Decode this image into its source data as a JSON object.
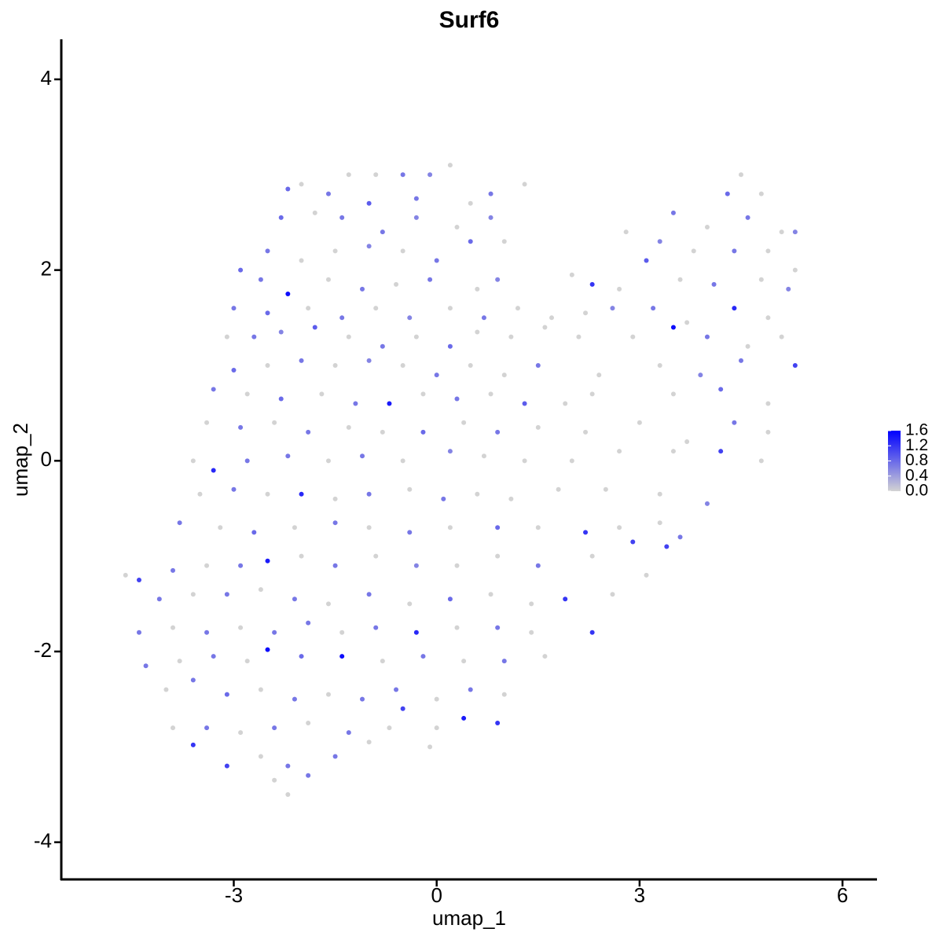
{
  "chart_data": {
    "type": "scatter",
    "title": "Surf6",
    "x_label": "umap_1",
    "y_label": "umap_2",
    "xlim": [
      -5.55,
      6.51
    ],
    "ylim": [
      -4.39,
      4.42
    ],
    "xticks": [
      -3,
      0,
      3,
      6
    ],
    "yticks": [
      -4,
      -2,
      0,
      2,
      4
    ],
    "low_color": "#d3d3d3",
    "high_color": "#0000ff",
    "color_lim": [
      0,
      1.6
    ],
    "color_ticks": [
      {
        "value": 0,
        "label": "0.0"
      },
      0.4,
      0.8,
      1.2,
      1.6
    ],
    "x": [
      -0.9,
      -0.5,
      -0.1,
      0.2,
      -1.3,
      -2.0,
      -2.2,
      -1.6,
      -1.0,
      -0.3,
      0.5,
      0.8,
      1.3,
      4.5,
      4.3,
      4.8,
      -2.3,
      -1.8,
      -1.4,
      -0.8,
      -0.3,
      0.3,
      0.8,
      3.5,
      4.0,
      4.6,
      5.1,
      5.3,
      -2.5,
      -2.0,
      -1.5,
      -1.0,
      -0.5,
      0.0,
      0.5,
      1.0,
      2.8,
      3.3,
      3.8,
      4.4,
      4.9,
      5.3,
      -2.9,
      -2.6,
      -2.2,
      -1.6,
      -1.1,
      -0.6,
      -0.1,
      0.6,
      0.9,
      2.0,
      2.3,
      2.7,
      3.1,
      3.6,
      4.1,
      4.8,
      5.2,
      -3.0,
      -2.5,
      -1.9,
      -1.4,
      -0.9,
      -0.4,
      0.2,
      0.7,
      1.2,
      1.7,
      2.2,
      2.6,
      3.2,
      3.7,
      4.4,
      4.9,
      -3.1,
      -2.7,
      -2.3,
      -1.8,
      -1.3,
      -0.8,
      -0.3,
      0.2,
      0.6,
      1.1,
      1.6,
      2.1,
      2.9,
      3.5,
      4.0,
      4.6,
      5.1,
      -3.0,
      -2.5,
      -2.0,
      -1.5,
      -1.0,
      -0.5,
      0.0,
      0.5,
      1.0,
      1.5,
      2.4,
      3.3,
      3.9,
      4.5,
      5.3,
      -3.3,
      -2.8,
      -2.3,
      -1.7,
      -1.2,
      -0.7,
      -0.2,
      0.3,
      0.8,
      1.3,
      1.9,
      2.3,
      3.5,
      4.2,
      4.9,
      -3.4,
      -2.9,
      -2.4,
      -1.9,
      -1.3,
      -0.8,
      -0.2,
      0.4,
      0.9,
      1.5,
      2.2,
      3.0,
      3.7,
      4.4,
      4.9,
      -3.6,
      -3.3,
      -2.8,
      -2.2,
      -1.6,
      -1.1,
      -0.5,
      0.2,
      0.7,
      1.3,
      2.0,
      2.7,
      3.5,
      4.2,
      4.8,
      -3.5,
      -3.0,
      -2.5,
      -2.0,
      -1.5,
      -1.0,
      -0.4,
      0.1,
      0.6,
      1.1,
      1.8,
      2.5,
      3.3,
      4.0,
      -3.8,
      -3.2,
      -2.7,
      -2.1,
      -1.5,
      -1.0,
      -0.4,
      0.2,
      0.9,
      1.5,
      2.2,
      2.7,
      3.3,
      3.6,
      -4.6,
      -4.4,
      -3.9,
      -3.4,
      -2.9,
      -2.5,
      -2.0,
      -1.5,
      -0.9,
      -0.3,
      0.3,
      0.9,
      1.5,
      2.3,
      2.9,
      3.4,
      3.1,
      -4.1,
      -3.6,
      -3.1,
      -2.6,
      -2.1,
      -1.6,
      -1.0,
      -0.4,
      0.2,
      0.8,
      1.4,
      1.9,
      2.6,
      -4.4,
      -3.9,
      -3.4,
      -2.9,
      -2.4,
      -1.9,
      -1.4,
      -0.9,
      -0.3,
      0.3,
      0.9,
      1.4,
      2.3,
      -4.3,
      -3.8,
      -3.3,
      -2.8,
      -2.5,
      -2.0,
      -1.4,
      -0.8,
      -0.2,
      0.4,
      1.0,
      1.6,
      -4.0,
      -3.6,
      -3.1,
      -2.6,
      -2.1,
      -1.6,
      -1.1,
      -0.6,
      0.0,
      0.5,
      1.0,
      -3.9,
      -3.4,
      -2.9,
      -2.4,
      -1.9,
      -1.3,
      -0.7,
      0.0,
      0.4,
      0.9,
      -0.5,
      -3.6,
      -3.1,
      -2.6,
      -2.2,
      -1.5,
      -1.0,
      -0.1,
      -2.4,
      -2.2,
      -1.9
    ],
    "y": [
      3.0,
      3.0,
      3.0,
      3.1,
      3.0,
      2.9,
      2.85,
      2.8,
      2.7,
      2.75,
      2.7,
      2.8,
      2.9,
      3.0,
      2.8,
      2.8,
      2.55,
      2.6,
      2.55,
      2.4,
      2.55,
      2.45,
      2.55,
      2.6,
      2.45,
      2.55,
      2.4,
      2.4,
      2.2,
      2.1,
      2.2,
      2.25,
      2.2,
      2.1,
      2.3,
      2.3,
      2.4,
      2.3,
      2.2,
      2.2,
      2.2,
      2.0,
      2.0,
      1.9,
      1.75,
      1.9,
      1.8,
      1.85,
      1.9,
      1.8,
      1.9,
      1.95,
      1.85,
      1.8,
      2.1,
      1.9,
      1.85,
      1.9,
      1.8,
      1.6,
      1.55,
      1.6,
      1.5,
      1.6,
      1.5,
      1.6,
      1.5,
      1.6,
      1.5,
      1.55,
      1.6,
      1.6,
      1.45,
      1.6,
      1.5,
      1.3,
      1.3,
      1.35,
      1.4,
      1.3,
      1.2,
      1.3,
      1.2,
      1.35,
      1.3,
      1.4,
      1.3,
      1.3,
      1.4,
      1.3,
      1.2,
      1.3,
      0.95,
      1.0,
      1.05,
      1.0,
      1.05,
      1.0,
      0.9,
      1.0,
      0.9,
      1.0,
      0.9,
      1.0,
      0.9,
      1.05,
      1.0,
      0.75,
      0.7,
      0.65,
      0.7,
      0.6,
      0.6,
      0.7,
      0.65,
      0.7,
      0.6,
      0.6,
      0.7,
      0.7,
      0.75,
      0.6,
      0.4,
      0.35,
      0.4,
      0.3,
      0.35,
      0.3,
      0.3,
      0.4,
      0.3,
      0.35,
      0.3,
      0.4,
      0.2,
      0.4,
      0.3,
      0.0,
      -0.1,
      0.0,
      0.05,
      0.0,
      0.05,
      0.0,
      0.1,
      0.05,
      0.0,
      0.0,
      0.1,
      0.1,
      0.1,
      0.0,
      -0.35,
      -0.3,
      -0.35,
      -0.35,
      -0.4,
      -0.35,
      -0.3,
      -0.4,
      -0.35,
      -0.4,
      -0.3,
      -0.3,
      -0.35,
      -0.45,
      -0.65,
      -0.7,
      -0.75,
      -0.7,
      -0.65,
      -0.7,
      -0.75,
      -0.7,
      -0.7,
      -0.7,
      -0.75,
      -0.7,
      -0.65,
      -0.8,
      -1.2,
      -1.25,
      -1.15,
      -1.1,
      -1.1,
      -1.05,
      -1.0,
      -1.1,
      -1.0,
      -1.1,
      -1.1,
      -1.0,
      -1.1,
      -1.0,
      -0.85,
      -0.9,
      -1.2,
      -1.45,
      -1.4,
      -1.4,
      -1.35,
      -1.45,
      -1.5,
      -1.4,
      -1.5,
      -1.45,
      -1.4,
      -1.5,
      -1.45,
      -1.4,
      -1.8,
      -1.75,
      -1.8,
      -1.75,
      -1.8,
      -1.7,
      -1.8,
      -1.75,
      -1.8,
      -1.75,
      -1.75,
      -1.8,
      -1.8,
      -2.15,
      -2.1,
      -2.05,
      -2.1,
      -1.98,
      -2.05,
      -2.05,
      -2.1,
      -2.05,
      -2.1,
      -2.1,
      -2.05,
      -2.4,
      -2.3,
      -2.45,
      -2.4,
      -2.5,
      -2.45,
      -2.5,
      -2.4,
      -2.5,
      -2.4,
      -2.45,
      -2.8,
      -2.8,
      -2.85,
      -2.8,
      -2.75,
      -2.85,
      -2.8,
      -2.8,
      -2.7,
      -2.75,
      -2.6,
      -2.98,
      -3.2,
      -3.1,
      -3.2,
      -3.1,
      -2.95,
      -3.0,
      -3.35,
      -3.5,
      -3.3
    ],
    "values": [
      0,
      0.7,
      0.6,
      0,
      0,
      0,
      0.8,
      0.7,
      0.9,
      0.7,
      0,
      0.7,
      0,
      0,
      0.8,
      0,
      0.8,
      0,
      0.7,
      0.7,
      0.6,
      0,
      0.6,
      0.7,
      0,
      0.7,
      0,
      0.6,
      0.7,
      0,
      0,
      0.6,
      0,
      0.7,
      0.8,
      0,
      0,
      0.6,
      0,
      0.7,
      0,
      0,
      0.8,
      0.7,
      1.5,
      0,
      0.7,
      0,
      0.7,
      0,
      0.6,
      0,
      1.2,
      0,
      0.9,
      0,
      0.7,
      0,
      0.6,
      0.7,
      0.8,
      0,
      0.7,
      0,
      0.6,
      0,
      0.7,
      0,
      0,
      0,
      0.6,
      0.7,
      0,
      1.3,
      0,
      0,
      0.7,
      0.6,
      0.9,
      0,
      0.7,
      0,
      0.8,
      0,
      0,
      0,
      0,
      0,
      1.5,
      0.7,
      0,
      0,
      0.8,
      0,
      0.7,
      0,
      0.6,
      0,
      0.7,
      0,
      0,
      0.7,
      0,
      0,
      0.6,
      0.7,
      1.1,
      0.7,
      0,
      0.8,
      0,
      0.7,
      1.4,
      0,
      0.7,
      0,
      0.9,
      0,
      0,
      0,
      0.8,
      0,
      0,
      0.7,
      0,
      0.7,
      0,
      0,
      0.8,
      0,
      0.7,
      0,
      0,
      0,
      0,
      0.7,
      0,
      0,
      1.3,
      0.7,
      0.7,
      0,
      0.7,
      0,
      0.6,
      0,
      0,
      0,
      0,
      0,
      1.1,
      0,
      0,
      0.7,
      0,
      1.3,
      0,
      0.7,
      0,
      0.7,
      0,
      0,
      0,
      0,
      0,
      0.6,
      0.7,
      0,
      0.8,
      0,
      0.7,
      0,
      0.7,
      0,
      0.8,
      0,
      1.2,
      0,
      0,
      0.7,
      0,
      1.1,
      0.7,
      0,
      0.7,
      1.4,
      0,
      0.7,
      0,
      0.6,
      0,
      0,
      0.7,
      0,
      1.1,
      1.1,
      0,
      0.7,
      0,
      0.7,
      0,
      0.7,
      0,
      0.7,
      0,
      0.8,
      0,
      0,
      1.2,
      0,
      0.7,
      0,
      0.7,
      0,
      0.7,
      0.7,
      0,
      0.7,
      1.3,
      0,
      0.7,
      0,
      1.2,
      0.7,
      0,
      0.7,
      0,
      1.5,
      0.8,
      1.5,
      0,
      0.7,
      0,
      0.7,
      0,
      0,
      0.7,
      0.8,
      0,
      0.7,
      0,
      0.7,
      0.7,
      0,
      0.7,
      0,
      0,
      0.7,
      0,
      0.7,
      0,
      0.7,
      0,
      0,
      1.4,
      1.2,
      1.1,
      1.2,
      1.1,
      0,
      0.7,
      0.7,
      0,
      0,
      0,
      0,
      0.7
    ]
  }
}
